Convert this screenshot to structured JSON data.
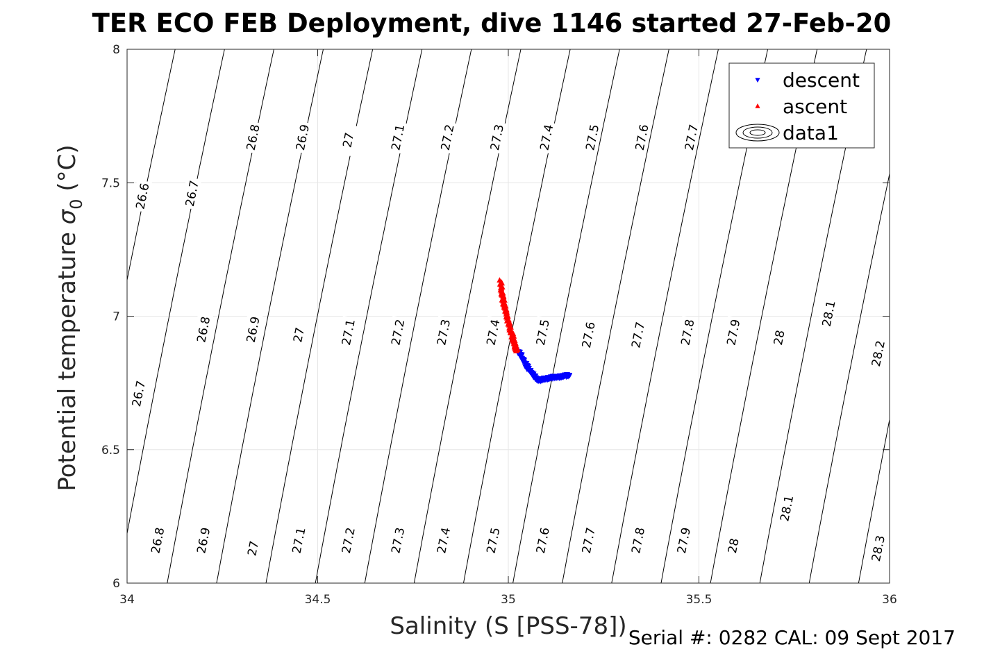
{
  "chart_data": {
    "type": "scatter",
    "title": "TER ECO FEB Deployment, dive 1146 started 27-Feb-20",
    "xlabel": "Salinity (S [PSS-78])",
    "ylabel_text": "Potential temperature ",
    "ylabel_sigma": "σ",
    "ylabel_sub": "0",
    "ylabel_unit": " (°C)",
    "xlim": [
      34,
      36
    ],
    "ylim": [
      6,
      8
    ],
    "xticks": [
      34,
      34.5,
      35,
      35.5,
      36
    ],
    "yticks": [
      6,
      6.5,
      7,
      7.5,
      8
    ],
    "xtick_labels": [
      "34",
      "34.5",
      "35",
      "35.5",
      "36"
    ],
    "ytick_labels": [
      "6",
      "6.5",
      "7",
      "7.5",
      "8"
    ],
    "grid": true,
    "legend_position": "top-right",
    "legend": [
      {
        "label": "descent",
        "marker": "triangle-down",
        "color": "#0000ff"
      },
      {
        "label": "ascent",
        "marker": "triangle-up",
        "color": "#ff0000"
      },
      {
        "label": "data1",
        "marker": "contour",
        "color": "#000000"
      }
    ],
    "density_contours": {
      "levels": [
        26.6,
        26.7,
        26.8,
        26.9,
        27.0,
        27.1,
        27.2,
        27.3,
        27.4,
        27.5,
        27.6,
        27.7,
        27.8,
        27.9,
        28.0,
        28.1,
        28.2,
        28.3
      ],
      "color": "#000000",
      "labels": [
        {
          "text": "26.6",
          "s": 34.04,
          "t": 7.45
        },
        {
          "text": "26.7",
          "s": 34.17,
          "t": 7.46
        },
        {
          "text": "26.8",
          "s": 34.33,
          "t": 7.67
        },
        {
          "text": "26.9",
          "s": 34.46,
          "t": 7.67
        },
        {
          "text": "27",
          "s": 34.58,
          "t": 7.66
        },
        {
          "text": "27.1",
          "s": 34.71,
          "t": 7.67
        },
        {
          "text": "27.2",
          "s": 34.84,
          "t": 7.67
        },
        {
          "text": "27.3",
          "s": 34.97,
          "t": 7.67
        },
        {
          "text": "27.4",
          "s": 35.1,
          "t": 7.67
        },
        {
          "text": "27.5",
          "s": 35.22,
          "t": 7.67
        },
        {
          "text": "27.6",
          "s": 35.35,
          "t": 7.67
        },
        {
          "text": "27.7",
          "s": 35.48,
          "t": 7.67
        },
        {
          "text": "26.8",
          "s": 34.2,
          "t": 6.95
        },
        {
          "text": "26.9",
          "s": 34.33,
          "t": 6.95
        },
        {
          "text": "27",
          "s": 34.45,
          "t": 6.93
        },
        {
          "text": "27.1",
          "s": 34.58,
          "t": 6.94
        },
        {
          "text": "27.2",
          "s": 34.71,
          "t": 6.94
        },
        {
          "text": "27.3",
          "s": 34.83,
          "t": 6.94
        },
        {
          "text": "27.4",
          "s": 34.96,
          "t": 6.94
        },
        {
          "text": "27.5",
          "s": 35.09,
          "t": 6.94
        },
        {
          "text": "27.6",
          "s": 35.21,
          "t": 6.93
        },
        {
          "text": "27.7",
          "s": 35.34,
          "t": 6.93
        },
        {
          "text": "27.8",
          "s": 35.47,
          "t": 6.94
        },
        {
          "text": "27.9",
          "s": 35.59,
          "t": 6.94
        },
        {
          "text": "28",
          "s": 35.71,
          "t": 6.92
        },
        {
          "text": "28.1",
          "s": 35.84,
          "t": 7.01
        },
        {
          "text": "28.2",
          "s": 35.97,
          "t": 6.86
        },
        {
          "text": "26.7",
          "s": 34.03,
          "t": 6.71
        },
        {
          "text": "26.8",
          "s": 34.08,
          "t": 6.16
        },
        {
          "text": "26.9",
          "s": 34.2,
          "t": 6.16
        },
        {
          "text": "27",
          "s": 34.33,
          "t": 6.13
        },
        {
          "text": "27.1",
          "s": 34.45,
          "t": 6.16
        },
        {
          "text": "27.2",
          "s": 34.58,
          "t": 6.16
        },
        {
          "text": "27.3",
          "s": 34.71,
          "t": 6.16
        },
        {
          "text": "27.4",
          "s": 34.83,
          "t": 6.16
        },
        {
          "text": "27.5",
          "s": 34.96,
          "t": 6.16
        },
        {
          "text": "27.6",
          "s": 35.09,
          "t": 6.16
        },
        {
          "text": "27.7",
          "s": 35.21,
          "t": 6.16
        },
        {
          "text": "27.8",
          "s": 35.34,
          "t": 6.16
        },
        {
          "text": "27.9",
          "s": 35.46,
          "t": 6.16
        },
        {
          "text": "28",
          "s": 35.59,
          "t": 6.14
        },
        {
          "text": "28.1",
          "s": 35.73,
          "t": 6.28
        },
        {
          "text": "28.3",
          "s": 35.97,
          "t": 6.13
        }
      ]
    },
    "series": [
      {
        "name": "descent",
        "color": "#0000ff",
        "marker": "triangle-down",
        "x": [
          35.025,
          35.035,
          35.045,
          35.055,
          35.065,
          35.075,
          35.082,
          35.09,
          35.1,
          35.11,
          35.12,
          35.13,
          35.14,
          35.15,
          35.16
        ],
        "y": [
          6.87,
          6.85,
          6.82,
          6.8,
          6.78,
          6.765,
          6.76,
          6.765,
          6.765,
          6.77,
          6.772,
          6.772,
          6.775,
          6.777,
          6.78
        ]
      },
      {
        "name": "ascent",
        "color": "#ff0000",
        "marker": "triangle-up",
        "x": [
          34.98,
          34.982,
          34.985,
          34.99,
          34.995,
          35.0,
          35.005,
          35.01,
          35.014,
          35.018,
          35.02,
          35.022
        ],
        "y": [
          7.13,
          7.1,
          7.07,
          7.04,
          7.01,
          6.98,
          6.95,
          6.93,
          6.91,
          6.89,
          6.88,
          6.87
        ]
      }
    ]
  },
  "footer": {
    "serial_text": "Serial #: 0282  CAL: 09 Sept 2017"
  }
}
